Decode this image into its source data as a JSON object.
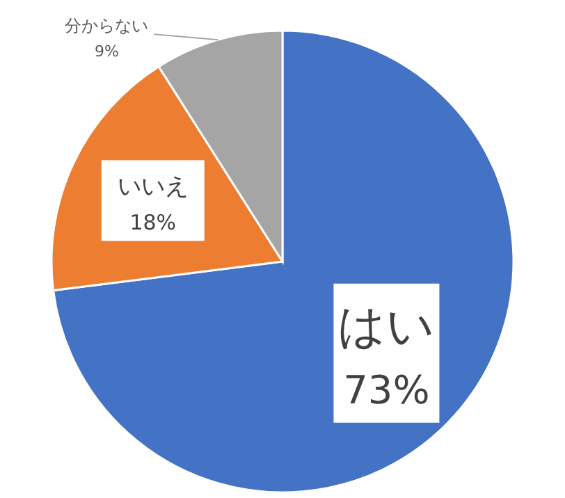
{
  "chart_data": {
    "type": "pie",
    "categories": [
      "はい",
      "いいえ",
      "分からない"
    ],
    "values": [
      73,
      18,
      9
    ],
    "colors": [
      "#4472c4",
      "#ed7d31",
      "#a5a5a5"
    ],
    "value_labels": [
      "73%",
      "18%",
      "9%"
    ]
  }
}
